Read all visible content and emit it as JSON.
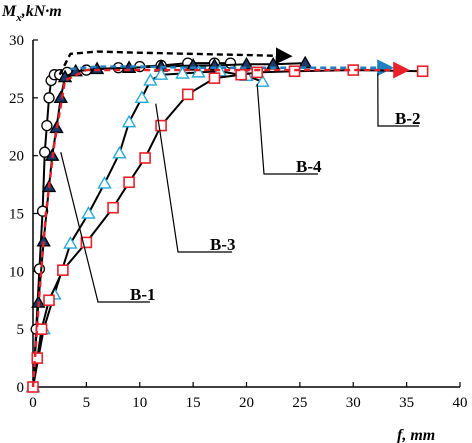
{
  "chart_data": {
    "type": "line",
    "xlabel": "f, mm",
    "ylabel": "Mx,kN·m",
    "ylabel_main": "M",
    "ylabel_sub": "x",
    "ylabel_rest": ",kN·m",
    "xlim": [
      0,
      40
    ],
    "ylim": [
      0,
      30
    ],
    "x_ticks": [
      0,
      5,
      10,
      15,
      20,
      25,
      30,
      35,
      40
    ],
    "y_ticks": [
      0,
      5,
      10,
      15,
      20,
      25,
      30
    ],
    "grid": false,
    "series": [
      {
        "name": "B-1",
        "color": "#000000",
        "marker": "circle",
        "marker_fill": "#ffffff",
        "dash": false,
        "x": [
          0,
          0.3,
          0.6,
          0.9,
          1.1,
          1.3,
          1.5,
          1.7,
          2.0,
          2.5,
          3.2,
          5.0,
          8.0,
          10.0,
          12.0,
          14.5,
          17.0,
          18.5
        ],
        "y": [
          0,
          5.0,
          10.2,
          15.2,
          20.3,
          22.6,
          25.0,
          26.5,
          27.0,
          27.0,
          27.2,
          27.4,
          27.6,
          27.7,
          27.8,
          28.0,
          28.0,
          28.0
        ]
      },
      {
        "name": "B-1 extension",
        "color": "#000000",
        "marker": "none",
        "dash": true,
        "arrow": true,
        "x": [
          2.5,
          3.5,
          6.0,
          10.0,
          15.0,
          20.0,
          24.0
        ],
        "y": [
          27.0,
          28.8,
          29.0,
          28.9,
          28.8,
          28.7,
          28.6
        ]
      },
      {
        "name": "B-2",
        "color": "#000000",
        "marker": "triangle",
        "marker_fill": "#1a3a6e",
        "dash": false,
        "x": [
          0,
          0.5,
          1.0,
          1.5,
          1.8,
          2.2,
          2.6,
          3.0,
          4.0,
          6.0,
          9.0,
          12.0,
          15.0,
          17.0,
          20.0,
          22.5,
          25.5
        ],
        "y": [
          0,
          7.3,
          12.6,
          17.3,
          20.0,
          22.4,
          25.0,
          26.8,
          27.3,
          27.5,
          27.6,
          27.7,
          27.8,
          27.8,
          27.9,
          27.9,
          28.0
        ]
      },
      {
        "name": "B-2 extension",
        "color": "#1f7fc0",
        "marker": "none",
        "dash": true,
        "arrow": true,
        "x": [
          3.5,
          6.0,
          10.0,
          15.0,
          20.0,
          25.0,
          29.0,
          32.0,
          33.5
        ],
        "y": [
          27.5,
          27.7,
          27.7,
          27.6,
          27.6,
          27.6,
          27.6,
          27.6,
          27.6
        ]
      },
      {
        "name": "B-3",
        "color": "#000000",
        "marker": "triangle",
        "marker_fill": "#ffffff",
        "marker_stroke": "#27a8d8",
        "dash": false,
        "x": [
          0,
          1.0,
          2.0,
          3.5,
          5.2,
          6.7,
          8.1,
          9.0,
          10.2,
          11.0,
          12.0,
          14.0,
          15.5,
          17.5,
          20.0,
          21.5
        ],
        "y": [
          0,
          5.0,
          8.0,
          12.4,
          15.0,
          17.6,
          20.2,
          22.9,
          25.0,
          26.5,
          27.0,
          27.1,
          27.2,
          27.3,
          26.9,
          26.4
        ]
      },
      {
        "name": "B-4",
        "color": "#000000",
        "marker": "square",
        "marker_fill": "#ffffff",
        "marker_stroke": "#e8202a",
        "dash": false,
        "x": [
          0,
          0.4,
          0.8,
          1.5,
          2.8,
          5.0,
          7.5,
          9.0,
          10.5,
          12.0,
          14.5,
          17.0,
          19.5,
          21.0,
          24.5,
          30.0,
          36.5
        ],
        "y": [
          0,
          2.5,
          5.0,
          7.5,
          10.1,
          12.5,
          15.5,
          17.7,
          19.8,
          22.6,
          25.3,
          26.7,
          27.0,
          27.2,
          27.3,
          27.4,
          27.3
        ]
      },
      {
        "name": "B-4 extension",
        "color": "#e8202a",
        "marker": "none",
        "dash": true,
        "arrow": true,
        "x": [
          0,
          0.6,
          1.2,
          2.0,
          3.0,
          5.0,
          10.0,
          15.0,
          20.0,
          25.0,
          30.0,
          35.0
        ],
        "y": [
          0,
          8.0,
          15.0,
          21.0,
          26.5,
          27.4,
          27.4,
          27.4,
          27.4,
          27.4,
          27.4,
          27.4
        ]
      }
    ],
    "annotations": [
      {
        "text": "B-1",
        "anchor_x": 2.6,
        "anchor_y": 20.3
      },
      {
        "text": "B-2",
        "anchor_x": 32.3,
        "anchor_y": 27.1
      },
      {
        "text": "B-3",
        "anchor_x": 11.5,
        "anchor_y": 24.5
      },
      {
        "text": "B-4",
        "anchor_x": 21.0,
        "anchor_y": 26.2
      }
    ]
  }
}
